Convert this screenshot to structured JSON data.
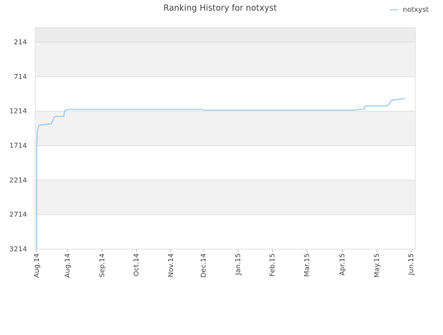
{
  "chart_data": {
    "type": "line",
    "title": "Ranking History for notxyst",
    "x": [
      0,
      0,
      0.02,
      0.06,
      0.18,
      0.42,
      0.46,
      0.5,
      0.54,
      0.79,
      0.81,
      0.89,
      0.95,
      4.81,
      4.85,
      9.24,
      9.28,
      9.52,
      9.54,
      10.16,
      10.24,
      10.3,
      10.4,
      10.6,
      10.7
    ],
    "series": [
      {
        "name": "notxyst",
        "color": "#8ec2ea",
        "values": [
          3214,
          1714,
          1509,
          1419,
          1409,
          1399,
          1359,
          1309,
          1289,
          1289,
          1209,
          1189,
          1189,
          1189,
          1199,
          1199,
          1189,
          1189,
          1139,
          1139,
          1109,
          1058,
          1048,
          1038,
          1028
        ]
      }
    ],
    "xlim": [
      -0.04,
      11
    ],
    "xticks": [
      {
        "value": 0,
        "label": "Aug.14"
      },
      {
        "value": 0.9,
        "label": "Aug.14"
      },
      {
        "value": 1.9,
        "label": "Sep.14"
      },
      {
        "value": 2.9,
        "label": "Oct.14"
      },
      {
        "value": 3.9,
        "label": "Nov.14"
      },
      {
        "value": 4.85,
        "label": "Dec.14"
      },
      {
        "value": 5.85,
        "label": "Jan.15"
      },
      {
        "value": 6.85,
        "label": "Feb.15"
      },
      {
        "value": 7.85,
        "label": "Mar.15"
      },
      {
        "value": 8.88,
        "label": "Apr.15"
      },
      {
        "value": 9.88,
        "label": "May.15"
      },
      {
        "value": 10.88,
        "label": "Jun.15"
      }
    ],
    "ylim": [
      3214,
      4
    ],
    "yticks": [
      214,
      714,
      1214,
      1714,
      2214,
      2714,
      3214
    ],
    "grid": true,
    "legend": "top-right"
  }
}
